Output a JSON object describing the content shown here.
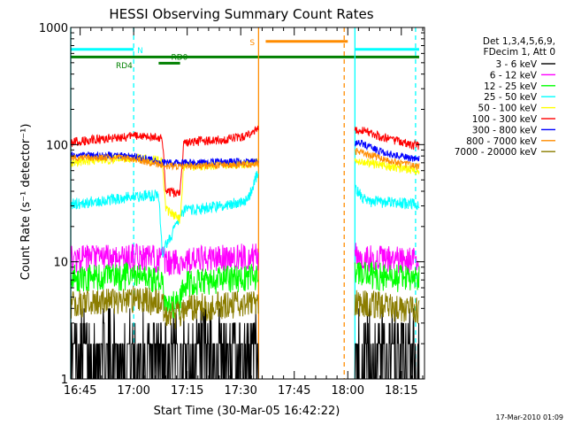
{
  "chart_data": {
    "type": "line",
    "title": "HESSI Observing Summary Count Rates",
    "xlabel": "Start Time (30-Mar-05 16:42:22)",
    "ylabel": "Count Rate (s⁻¹ detector⁻¹)",
    "yscale": "log",
    "ylim": [
      1,
      1000
    ],
    "xlim": [
      "16:42:22",
      "18:21:30"
    ],
    "x_ticks": [
      "16:45",
      "17:00",
      "17:15",
      "17:30",
      "17:45",
      "18:00",
      "18:15"
    ],
    "y_ticks": [
      "1",
      "10",
      "100",
      "1000"
    ],
    "date_stamp": "17-Mar-2010 01:09",
    "legend": {
      "position": "right",
      "header": [
        "Det 1,3,4,5,6,9,",
        "FDecim 1, Att 0"
      ],
      "entries": [
        {
          "label": "3 - 6 keV",
          "color": "#000000"
        },
        {
          "label": "6 - 12 keV",
          "color": "#ff00ff"
        },
        {
          "label": "12 - 25 keV",
          "color": "#00ff00"
        },
        {
          "label": "25 - 50 keV",
          "color": "#00ffff"
        },
        {
          "label": "50 - 100 keV",
          "color": "#ffff00"
        },
        {
          "label": "100 - 300 keV",
          "color": "#ff0000"
        },
        {
          "label": "300 - 800 keV",
          "color": "#0000ff"
        },
        {
          "label": "800 - 7000 keV",
          "color": "#ff8c00"
        },
        {
          "label": "7000 - 20000 keV",
          "color": "#8b7d00"
        }
      ]
    },
    "annotations": [
      {
        "label": "N",
        "color": "#00ffff"
      },
      {
        "label": "S",
        "color": "#ff8c00"
      },
      {
        "label": "RD0",
        "color": "#008000"
      },
      {
        "label": "RD4",
        "color": "#008000"
      }
    ],
    "flag_bars": {
      "night": {
        "color": "#00ffff",
        "y": 650,
        "segments": [
          [
            "16:42:22",
            "17:00"
          ],
          [
            "18:02",
            "18:20"
          ]
        ]
      },
      "saa": {
        "color": "#ff8c00",
        "y": 760,
        "segments": [
          [
            "17:37",
            "18:00"
          ]
        ]
      },
      "decim": {
        "color": "#008000",
        "y": 560,
        "segments": [
          [
            "16:42:22",
            "18:20"
          ]
        ]
      },
      "rd4": {
        "color": "#008000",
        "y": 495,
        "segments": [
          [
            "17:07",
            "17:13"
          ]
        ]
      }
    },
    "event_lines": [
      {
        "time": "16:42:22",
        "color": "#00ffff",
        "style": "solid"
      },
      {
        "time": "17:00",
        "color": "#00ffff",
        "style": "dashed"
      },
      {
        "time": "17:35",
        "color": "#ff8c00",
        "style": "solid"
      },
      {
        "time": "17:59",
        "color": "#ff8c00",
        "style": "dashed"
      },
      {
        "time": "18:02",
        "color": "#00ffff",
        "style": "solid"
      },
      {
        "time": "18:19",
        "color": "#00ffff",
        "style": "dashed"
      }
    ],
    "segments": [
      [
        "16:42:22",
        "17:35"
      ],
      [
        "18:02",
        "18:20"
      ]
    ],
    "series": [
      {
        "name": "3 - 6 keV",
        "color": "#000000",
        "points": [
          [
            "16:45",
            1.6
          ],
          [
            "17:00",
            1.8
          ],
          [
            "17:10",
            2.0
          ],
          [
            "17:20",
            2.0
          ],
          [
            "17:34",
            2.2
          ],
          [
            "18:03",
            2.6
          ],
          [
            "18:10",
            1.8
          ],
          [
            "18:19",
            1.3
          ]
        ],
        "noise": 0.5
      },
      {
        "name": "6 - 12 keV",
        "color": "#ff00ff",
        "points": [
          [
            "16:42:22",
            10.5
          ],
          [
            "17:00",
            11
          ],
          [
            "17:08",
            10.5
          ],
          [
            "17:09",
            9.5
          ],
          [
            "17:12",
            10.0
          ],
          [
            "17:20",
            10.5
          ],
          [
            "17:34",
            11
          ],
          [
            "18:03",
            11
          ],
          [
            "18:10",
            10.5
          ],
          [
            "18:19",
            10
          ]
        ],
        "noise": 0.12
      },
      {
        "name": "12 - 25 keV",
        "color": "#00ff00",
        "points": [
          [
            "16:42:22",
            7.2
          ],
          [
            "17:00",
            7.5
          ],
          [
            "17:08",
            7.0
          ],
          [
            "17:09",
            4.0
          ],
          [
            "17:13",
            4.5
          ],
          [
            "17:14",
            6.5
          ],
          [
            "17:25",
            7
          ],
          [
            "17:34",
            7.5
          ],
          [
            "18:03",
            7.8
          ],
          [
            "18:19",
            7
          ]
        ],
        "noise": 0.12
      },
      {
        "name": "25 - 50 keV",
        "color": "#00ffff",
        "points": [
          [
            "16:42:22",
            31
          ],
          [
            "17:00",
            36
          ],
          [
            "17:07",
            37
          ],
          [
            "17:08",
            12
          ],
          [
            "17:14",
            27
          ],
          [
            "17:25",
            30
          ],
          [
            "17:32",
            34
          ],
          [
            "17:35",
            60
          ],
          [
            "18:02",
            42
          ],
          [
            "18:05",
            33
          ],
          [
            "18:19",
            31
          ]
        ],
        "noise": 0.05
      },
      {
        "name": "50 - 100 keV",
        "color": "#ffff00",
        "points": [
          [
            "16:42:22",
            70
          ],
          [
            "17:00",
            78
          ],
          [
            "17:08",
            72
          ],
          [
            "17:09",
            28
          ],
          [
            "17:13",
            23
          ],
          [
            "17:14",
            65
          ],
          [
            "17:30",
            68
          ],
          [
            "17:35",
            70
          ],
          [
            "18:03",
            72
          ],
          [
            "18:19",
            60
          ]
        ],
        "noise": 0.04
      },
      {
        "name": "100 - 300 keV",
        "color": "#ff0000",
        "points": [
          [
            "16:42:22",
            105
          ],
          [
            "17:00",
            118
          ],
          [
            "17:08",
            115
          ],
          [
            "17:09",
            40
          ],
          [
            "17:13",
            38
          ],
          [
            "17:14",
            105
          ],
          [
            "17:25",
            110
          ],
          [
            "17:32",
            120
          ],
          [
            "17:35",
            145
          ],
          [
            "18:03",
            135
          ],
          [
            "18:10",
            115
          ],
          [
            "18:19",
            98
          ]
        ],
        "noise": 0.04
      },
      {
        "name": "300 - 800 keV",
        "color": "#0000ff",
        "points": [
          [
            "16:42:22",
            82
          ],
          [
            "17:00",
            80
          ],
          [
            "17:08",
            70
          ],
          [
            "17:14",
            70
          ],
          [
            "17:34",
            72
          ],
          [
            "18:03",
            105
          ],
          [
            "18:10",
            85
          ],
          [
            "18:19",
            75
          ]
        ],
        "noise": 0.03
      },
      {
        "name": "800 - 7000 keV",
        "color": "#ff8c00",
        "points": [
          [
            "16:42:22",
            78
          ],
          [
            "17:00",
            76
          ],
          [
            "17:08",
            66
          ],
          [
            "17:14",
            65
          ],
          [
            "17:34",
            68
          ],
          [
            "18:03",
            88
          ],
          [
            "18:10",
            75
          ],
          [
            "18:19",
            65
          ]
        ],
        "noise": 0.03
      },
      {
        "name": "7000 - 20000 keV",
        "color": "#8b7d00",
        "points": [
          [
            "16:42:22",
            4.3
          ],
          [
            "17:00",
            4.8
          ],
          [
            "17:08",
            4.4
          ],
          [
            "17:09",
            3.5
          ],
          [
            "17:13",
            3.5
          ],
          [
            "17:14",
            4.0
          ],
          [
            "17:34",
            4.4
          ],
          [
            "18:03",
            4.5
          ],
          [
            "18:19",
            3.8
          ]
        ],
        "noise": 0.12
      }
    ]
  }
}
